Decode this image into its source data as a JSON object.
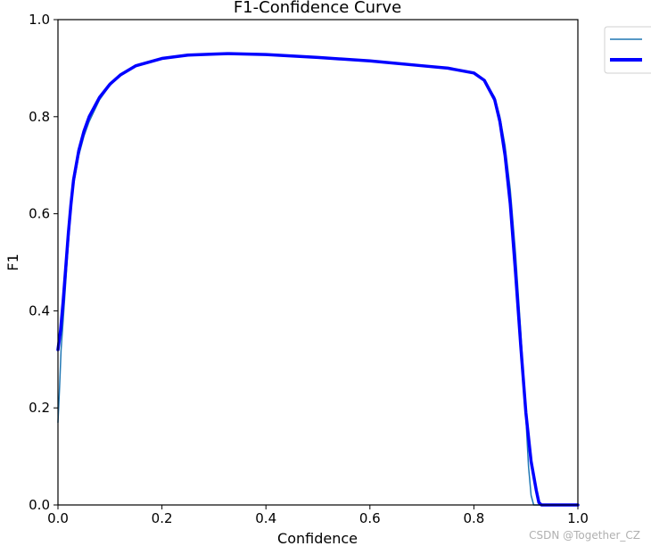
{
  "chart_data": {
    "type": "line",
    "title": "F1-Confidence Curve",
    "xlabel": "Confidence",
    "ylabel": "F1",
    "xlim": [
      0.0,
      1.0
    ],
    "ylim": [
      0.0,
      1.0
    ],
    "xticks": [
      "0.0",
      "0.2",
      "0.4",
      "0.6",
      "0.8",
      "1.0"
    ],
    "yticks": [
      "0.0",
      "0.2",
      "0.4",
      "0.6",
      "0.8",
      "1.0"
    ],
    "grid": false,
    "legend_position": "top-right (outside plot, clipped)",
    "series": [
      {
        "color": "#1f77b4",
        "points": [
          [
            0.0,
            0.17
          ],
          [
            0.003,
            0.24
          ],
          [
            0.006,
            0.32
          ],
          [
            0.01,
            0.38
          ],
          [
            0.015,
            0.46
          ],
          [
            0.02,
            0.54
          ],
          [
            0.025,
            0.61
          ],
          [
            0.03,
            0.66
          ],
          [
            0.04,
            0.72
          ],
          [
            0.05,
            0.76
          ],
          [
            0.06,
            0.79
          ],
          [
            0.08,
            0.835
          ],
          [
            0.1,
            0.865
          ],
          [
            0.12,
            0.885
          ],
          [
            0.15,
            0.905
          ],
          [
            0.2,
            0.92
          ],
          [
            0.25,
            0.927
          ],
          [
            0.3,
            0.929
          ],
          [
            0.33,
            0.93
          ],
          [
            0.4,
            0.928
          ],
          [
            0.5,
            0.922
          ],
          [
            0.6,
            0.915
          ],
          [
            0.7,
            0.905
          ],
          [
            0.75,
            0.9
          ],
          [
            0.8,
            0.89
          ],
          [
            0.82,
            0.875
          ],
          [
            0.84,
            0.84
          ],
          [
            0.85,
            0.8
          ],
          [
            0.86,
            0.74
          ],
          [
            0.87,
            0.65
          ],
          [
            0.88,
            0.52
          ],
          [
            0.89,
            0.36
          ],
          [
            0.9,
            0.18
          ],
          [
            0.905,
            0.08
          ],
          [
            0.91,
            0.02
          ],
          [
            0.915,
            0.0
          ],
          [
            1.0,
            0.0
          ]
        ]
      },
      {
        "color": "#0000ff",
        "points": [
          [
            0.0,
            0.32
          ],
          [
            0.005,
            0.36
          ],
          [
            0.01,
            0.42
          ],
          [
            0.015,
            0.49
          ],
          [
            0.02,
            0.56
          ],
          [
            0.025,
            0.62
          ],
          [
            0.03,
            0.67
          ],
          [
            0.04,
            0.73
          ],
          [
            0.05,
            0.77
          ],
          [
            0.06,
            0.8
          ],
          [
            0.08,
            0.84
          ],
          [
            0.1,
            0.867
          ],
          [
            0.12,
            0.886
          ],
          [
            0.15,
            0.905
          ],
          [
            0.2,
            0.92
          ],
          [
            0.25,
            0.927
          ],
          [
            0.3,
            0.929
          ],
          [
            0.33,
            0.93
          ],
          [
            0.4,
            0.928
          ],
          [
            0.5,
            0.922
          ],
          [
            0.6,
            0.915
          ],
          [
            0.7,
            0.905
          ],
          [
            0.75,
            0.9
          ],
          [
            0.8,
            0.89
          ],
          [
            0.82,
            0.875
          ],
          [
            0.84,
            0.835
          ],
          [
            0.85,
            0.79
          ],
          [
            0.86,
            0.72
          ],
          [
            0.87,
            0.62
          ],
          [
            0.88,
            0.48
          ],
          [
            0.89,
            0.33
          ],
          [
            0.9,
            0.19
          ],
          [
            0.91,
            0.09
          ],
          [
            0.92,
            0.03
          ],
          [
            0.925,
            0.005
          ],
          [
            0.93,
            0.0
          ],
          [
            1.0,
            0.0
          ]
        ]
      }
    ]
  },
  "watermark": "CSDN @Together_CZ"
}
